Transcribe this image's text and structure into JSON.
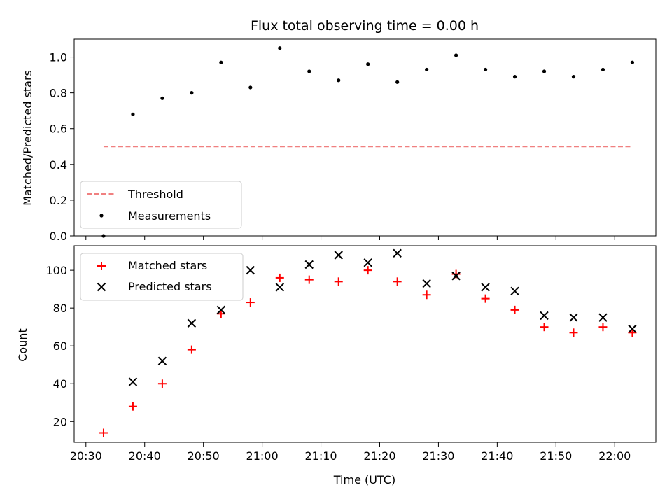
{
  "chart_data": [
    {
      "type": "scatter",
      "title": "Flux total observing time = 0.00 h",
      "ylabel": "Matched/Predicted stars",
      "xlabel": "",
      "ylim": [
        0,
        1.1
      ],
      "yticks": [
        0.0,
        0.2,
        0.4,
        0.6,
        0.8,
        1.0
      ],
      "ytick_labels": [
        "0.0",
        "0.2",
        "0.4",
        "0.6",
        "0.8",
        "1.0"
      ],
      "x": [
        "20:33",
        "20:38",
        "20:43",
        "20:48",
        "20:53",
        "20:58",
        "21:03",
        "21:08",
        "21:13",
        "21:18",
        "21:23",
        "21:28",
        "21:33",
        "21:38",
        "21:43",
        "21:48",
        "21:53",
        "21:58",
        "22:03"
      ],
      "series": [
        {
          "name": "Threshold",
          "style": "dashed-line",
          "color": "#f08080",
          "x": [
            "20:33",
            "22:03"
          ],
          "values": [
            0.5,
            0.5
          ]
        },
        {
          "name": "Measurements",
          "style": "dot",
          "color": "#000000",
          "values": [
            0.0,
            0.68,
            0.77,
            0.8,
            0.97,
            0.83,
            1.05,
            0.92,
            0.87,
            0.96,
            0.86,
            0.93,
            1.01,
            0.93,
            0.89,
            0.92,
            0.89,
            0.93,
            0.97
          ]
        }
      ],
      "legend": "lower-left",
      "grid": false
    },
    {
      "type": "scatter",
      "title": "",
      "ylabel": "Count",
      "xlabel": "Time (UTC)",
      "ylim": [
        9,
        113
      ],
      "yticks": [
        20,
        40,
        60,
        80,
        100
      ],
      "ytick_labels": [
        "20",
        "40",
        "60",
        "80",
        "100"
      ],
      "xlim": [
        "20:28",
        "22:07"
      ],
      "xticks": [
        "20:30",
        "20:40",
        "20:50",
        "21:00",
        "21:10",
        "21:20",
        "21:30",
        "21:40",
        "21:50",
        "22:00"
      ],
      "x": [
        "20:33",
        "20:38",
        "20:43",
        "20:48",
        "20:53",
        "20:58",
        "21:03",
        "21:08",
        "21:13",
        "21:18",
        "21:23",
        "21:28",
        "21:33",
        "21:38",
        "21:43",
        "21:48",
        "21:53",
        "21:58",
        "22:03"
      ],
      "series": [
        {
          "name": "Matched stars",
          "marker": "plus",
          "color": "#ff0000",
          "values": [
            14,
            28,
            40,
            58,
            77,
            83,
            96,
            95,
            94,
            100,
            94,
            87,
            98,
            85,
            79,
            70,
            67,
            70,
            67
          ]
        },
        {
          "name": "Predicted stars",
          "marker": "x",
          "color": "#000000",
          "values": [
            null,
            41,
            52,
            72,
            79,
            100,
            91,
            103,
            108,
            104,
            109,
            93,
            97,
            91,
            89,
            76,
            75,
            75,
            69
          ]
        }
      ],
      "legend": "upper-left",
      "grid": false
    }
  ]
}
